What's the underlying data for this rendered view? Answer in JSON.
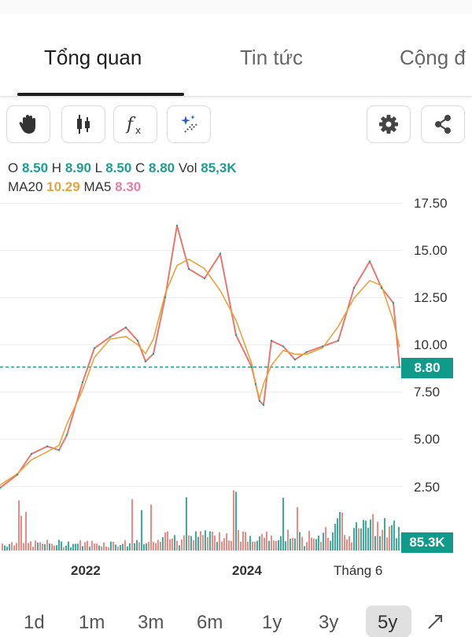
{
  "tabs": [
    {
      "label": "Tổng quan",
      "active": true
    },
    {
      "label": "Tin tức",
      "active": false
    },
    {
      "label": "Cộng đ",
      "active": false
    }
  ],
  "toolbar": {
    "left_tools": [
      "hand-pointer-icon",
      "candlestick-icon",
      "function-fx-icon",
      "magic-wand-icon"
    ],
    "right_tools": [
      "settings-gear-icon",
      "share-icon"
    ]
  },
  "ohlc": {
    "o_label": "O",
    "o_value": "8.50",
    "h_label": "H",
    "h_value": "8.90",
    "l_label": "L",
    "l_value": "8.50",
    "c_label": "C",
    "c_value": "8.80",
    "vol_label": "Vol",
    "vol_value": "85,3K"
  },
  "ma": {
    "ma20_label": "MA20",
    "ma20_value": "10.29",
    "ma5_label": "MA5",
    "ma5_value": "8.30"
  },
  "colors": {
    "up": "#1a9e8f",
    "down": "#e8776f",
    "ma20": "#e8a33d",
    "ma5": "#e57fa6",
    "accent_teal": "#0f9a8a"
  },
  "chart_data": {
    "type": "line",
    "title": "",
    "ylim": [
      0,
      17.5
    ],
    "y_ticks": [
      "17.50",
      "15.00",
      "12.50",
      "10.00",
      "7.50",
      "5.00",
      "2.50"
    ],
    "x_ticks": [
      "2022",
      "2024",
      "Tháng 6"
    ],
    "current_price_label": "8.80",
    "current_price": 8.8,
    "volume_label": "85.3K",
    "x": [
      "2020-07",
      "2020-10",
      "2021-01",
      "2021-04",
      "2021-07",
      "2021-08",
      "2021-10",
      "2021-12",
      "2022-02",
      "2022-04",
      "2022-06",
      "2022-08",
      "2022-09",
      "2022-10",
      "2022-11",
      "2022-12",
      "2023-01",
      "2023-03",
      "2023-05",
      "2023-07",
      "2023-09",
      "2023-11",
      "2024-01",
      "2024-02",
      "2024-04",
      "2024-06",
      "2024-08",
      "2024-10",
      "2024-12",
      "2025-02",
      "2025-04",
      "2025-06",
      "2025-07",
      "2025-08"
    ],
    "series": [
      {
        "values": [
          2.4,
          3.1,
          4.2,
          4.6,
          4.4,
          5.2,
          8.0,
          9.8,
          10.4,
          10.9,
          10.2,
          9.1,
          9.5,
          12.5,
          16.3,
          14.0,
          13.5,
          14.8,
          10.5,
          8.8,
          7.9,
          7.0,
          6.8,
          10.2,
          9.9,
          9.2,
          9.6,
          9.9,
          10.2,
          13.0,
          14.4,
          13.0,
          12.2,
          8.8
        ]
      }
    ]
  }
}
